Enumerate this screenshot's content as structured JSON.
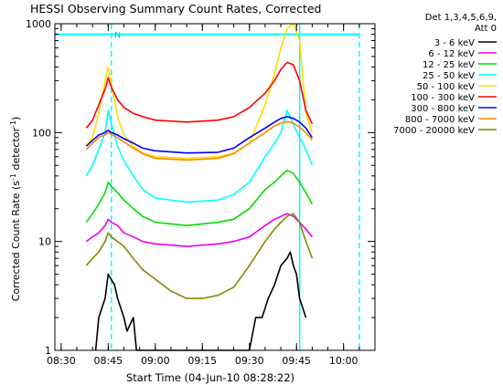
{
  "chart_data": {
    "type": "line",
    "title": "HESSI Observing Summary Count Rates, Corrected",
    "ylabel": "Corrected Count Rate (s",
    "ylabel_sup": "-1",
    "ylabel_mid": " detector",
    "ylabel_sup2": "-1",
    "ylabel_end": ")",
    "xlabel": "Start Time (04-Jun-10 08:28:22)",
    "y_scale": "log",
    "ylim": [
      1,
      1000
    ],
    "xlim": [
      "08:28",
      "10:10"
    ],
    "x_ticks": [
      "08:30",
      "08:45",
      "09:00",
      "09:15",
      "09:30",
      "09:45",
      "10:00"
    ],
    "y_ticks": [
      "1",
      "10",
      "100",
      "1000"
    ],
    "grid": false,
    "legend_position": "right",
    "legend_header": [
      "Det 1,3,4,5,6,9,",
      "Att 0"
    ],
    "annotation": {
      "label": "N",
      "x_range": [
        "08:28",
        "10:05"
      ],
      "y": 800
    },
    "markers": [
      {
        "x": "08:46",
        "style": "dashed"
      },
      {
        "x": "09:46",
        "style": "solid"
      },
      {
        "x": "10:05",
        "style": "dashed"
      }
    ],
    "series": [
      {
        "name": "3 - 6 keV",
        "color": "#000000",
        "x": [
          "08:41",
          "08:42",
          "08:44",
          "08:45",
          "08:47",
          "08:48",
          "08:50",
          "08:51",
          "08:53",
          "08:54",
          "08:55",
          "09:27",
          "09:30",
          "09:32",
          "09:34",
          "09:36",
          "09:38",
          "09:40",
          "09:42",
          "09:43",
          "09:44",
          "09:45",
          "09:46",
          "09:48"
        ],
        "values": [
          1,
          2,
          3,
          5,
          4,
          3,
          2,
          1.5,
          2,
          1,
          1,
          1,
          1,
          2,
          2,
          3,
          4,
          6,
          7,
          8,
          6,
          5,
          3,
          2
        ]
      },
      {
        "name": "6 - 12 keV",
        "color": "#ee00ee",
        "x": [
          "08:38",
          "08:40",
          "08:42",
          "08:44",
          "08:45",
          "08:46",
          "08:48",
          "08:50",
          "08:53",
          "08:56",
          "09:00",
          "09:10",
          "09:20",
          "09:25",
          "09:30",
          "09:35",
          "09:38",
          "09:40",
          "09:42",
          "09:44",
          "09:46",
          "09:48",
          "09:50"
        ],
        "values": [
          10,
          11,
          12,
          14,
          16,
          15,
          14,
          12,
          11,
          10,
          9.5,
          9,
          9.5,
          10,
          11,
          14,
          16,
          17,
          18,
          17,
          15,
          13,
          11
        ]
      },
      {
        "name": "12 - 25 keV",
        "color": "#00dd00",
        "x": [
          "08:38",
          "08:40",
          "08:42",
          "08:44",
          "08:45",
          "08:46",
          "08:48",
          "08:50",
          "08:53",
          "08:56",
          "09:00",
          "09:10",
          "09:20",
          "09:25",
          "09:30",
          "09:35",
          "09:38",
          "09:40",
          "09:42",
          "09:44",
          "09:46",
          "09:48",
          "09:50"
        ],
        "values": [
          15,
          18,
          22,
          28,
          35,
          32,
          28,
          24,
          20,
          17,
          15,
          14,
          15,
          16,
          20,
          30,
          35,
          40,
          45,
          42,
          35,
          28,
          22
        ]
      },
      {
        "name": "25 - 50 keV",
        "color": "#00ffff",
        "x": [
          "08:38",
          "08:40",
          "08:42",
          "08:44",
          "08:45",
          "08:46",
          "08:48",
          "08:50",
          "08:53",
          "08:56",
          "09:00",
          "09:10",
          "09:20",
          "09:25",
          "09:30",
          "09:35",
          "09:38",
          "09:40",
          "09:42",
          "09:44",
          "09:46",
          "09:48",
          "09:50"
        ],
        "values": [
          40,
          50,
          70,
          100,
          160,
          120,
          75,
          55,
          40,
          30,
          25,
          23,
          24,
          27,
          35,
          60,
          80,
          100,
          160,
          120,
          90,
          70,
          50
        ]
      },
      {
        "name": "50 - 100 keV",
        "color": "#ffdd00",
        "x": [
          "08:38",
          "08:40",
          "08:42",
          "08:44",
          "08:45",
          "08:46",
          "08:48",
          "08:50",
          "08:53",
          "08:56",
          "09:00",
          "09:10",
          "09:20",
          "09:25",
          "09:30",
          "09:35",
          "09:38",
          "09:40",
          "09:42",
          "09:44",
          "09:46",
          "09:48",
          "09:50"
        ],
        "values": [
          75,
          90,
          150,
          300,
          400,
          280,
          140,
          95,
          75,
          65,
          60,
          58,
          60,
          65,
          80,
          180,
          350,
          600,
          900,
          1000,
          700,
          150,
          100
        ]
      },
      {
        "name": "100 - 300 keV",
        "color": "#ff0000",
        "x": [
          "08:38",
          "08:40",
          "08:42",
          "08:44",
          "08:45",
          "08:46",
          "08:48",
          "08:50",
          "08:53",
          "08:56",
          "09:00",
          "09:10",
          "09:20",
          "09:25",
          "09:30",
          "09:35",
          "09:38",
          "09:40",
          "09:42",
          "09:44",
          "09:46",
          "09:48",
          "09:50"
        ],
        "values": [
          110,
          130,
          180,
          250,
          320,
          260,
          200,
          170,
          150,
          140,
          130,
          125,
          130,
          140,
          170,
          230,
          300,
          380,
          440,
          420,
          300,
          160,
          120
        ]
      },
      {
        "name": "300 - 800 keV",
        "color": "#0000ff",
        "x": [
          "08:38",
          "08:40",
          "08:42",
          "08:44",
          "08:45",
          "08:46",
          "08:48",
          "08:50",
          "08:53",
          "08:56",
          "09:00",
          "09:10",
          "09:20",
          "09:25",
          "09:30",
          "09:35",
          "09:38",
          "09:40",
          "09:42",
          "09:44",
          "09:46",
          "09:48",
          "09:50"
        ],
        "values": [
          75,
          85,
          95,
          100,
          105,
          100,
          95,
          88,
          80,
          72,
          68,
          65,
          66,
          72,
          90,
          110,
          125,
          135,
          140,
          135,
          125,
          110,
          90
        ]
      },
      {
        "name": "800 - 7000 keV",
        "color": "#ff8800",
        "x": [
          "08:38",
          "08:40",
          "08:42",
          "08:44",
          "08:45",
          "08:46",
          "08:48",
          "08:50",
          "08:53",
          "08:56",
          "09:00",
          "09:10",
          "09:20",
          "09:25",
          "09:30",
          "09:35",
          "09:38",
          "09:40",
          "09:42",
          "09:44",
          "09:46",
          "09:48",
          "09:50"
        ],
        "values": [
          70,
          80,
          90,
          95,
          100,
          96,
          90,
          82,
          72,
          64,
          58,
          56,
          58,
          64,
          80,
          100,
          115,
          122,
          126,
          122,
          112,
          100,
          85
        ]
      },
      {
        "name": "7000 - 20000 keV",
        "color": "#888800",
        "x": [
          "08:38",
          "08:40",
          "08:42",
          "08:44",
          "08:45",
          "08:46",
          "08:48",
          "08:50",
          "08:53",
          "08:56",
          "09:00",
          "09:05",
          "09:10",
          "09:15",
          "09:20",
          "09:25",
          "09:30",
          "09:35",
          "09:38",
          "09:40",
          "09:42",
          "09:44",
          "09:46",
          "09:48",
          "09:50"
        ],
        "values": [
          6,
          7,
          8,
          10,
          12,
          11,
          10,
          9,
          7,
          5.5,
          4.5,
          3.5,
          3,
          3,
          3.2,
          3.8,
          6,
          10,
          13,
          15,
          17,
          18,
          15,
          10,
          7
        ]
      }
    ]
  }
}
